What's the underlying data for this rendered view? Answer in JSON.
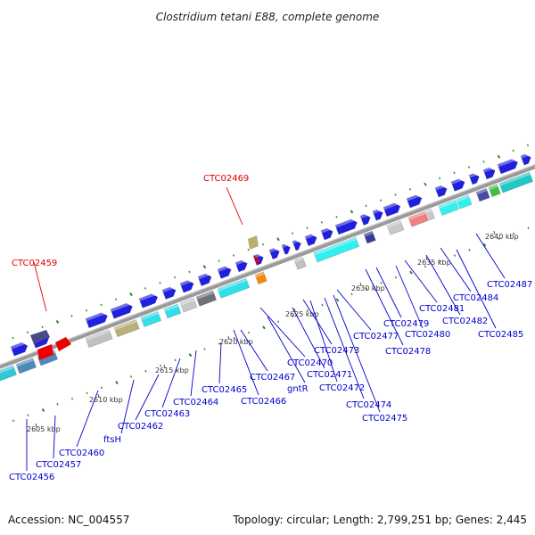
{
  "title": "Clostridium tetani E88, complete genome",
  "footer": {
    "accession": "Accession: NC_004557",
    "topology": "Topology: circular; Length: 2,799,251 bp; Genes: 2,445"
  },
  "colors": {
    "backbone": "#8a8a8a",
    "dots": "#228822",
    "gene_label": "#0000cc",
    "highlight_label": "#dd0000"
  },
  "scale_ticks": [
    "2605 kbp",
    "2610 kbp",
    "2615 kbp",
    "2620 kbp",
    "2625 kbp",
    "2630 kbp",
    "2635 kbp",
    "2640 kbp"
  ],
  "highlighted_genes": [
    "CTC02459",
    "CTC02469"
  ],
  "gene_labels": [
    "CTC02456",
    "CTC02457",
    "CTC02460",
    "ftsH",
    "CTC02462",
    "CTC02463",
    "CTC02464",
    "CTC02465",
    "CTC02466",
    "CTC02467",
    "gntR",
    "CTC02470",
    "CTC02471",
    "CTC02473",
    "CTC02472",
    "CTC02474",
    "CTC02475",
    "CTC02477",
    "CTC02478",
    "CTC02479",
    "CTC02480",
    "CTC02481",
    "CTC02482",
    "CTC02484",
    "CTC02485",
    "CTC02487"
  ]
}
